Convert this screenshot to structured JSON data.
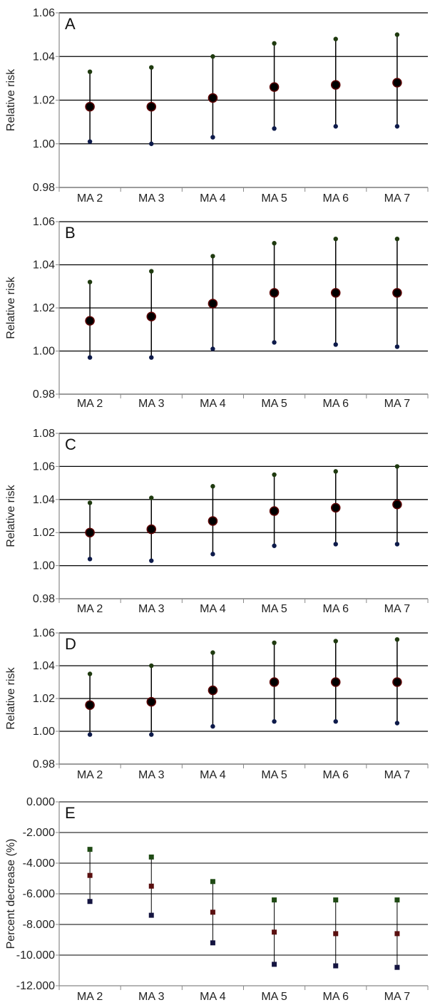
{
  "chart_data": [
    {
      "type": "scatter",
      "panel_label": "A",
      "ylabel": "Relative risk",
      "categories": [
        "MA 2",
        "MA 3",
        "MA 4",
        "MA 5",
        "MA 6",
        "MA 7"
      ],
      "yticks": [
        "0.98",
        "1.00",
        "1.02",
        "1.04",
        "1.06"
      ],
      "ylim": [
        0.98,
        1.06
      ],
      "grid": true,
      "estimate": [
        1.017,
        1.017,
        1.021,
        1.026,
        1.027,
        1.028
      ],
      "lower": [
        1.001,
        1.0,
        1.003,
        1.007,
        1.008,
        1.008
      ],
      "upper": [
        1.033,
        1.035,
        1.04,
        1.046,
        1.048,
        1.05
      ]
    },
    {
      "type": "scatter",
      "panel_label": "B",
      "ylabel": "Relative risk",
      "categories": [
        "MA 2",
        "MA 3",
        "MA 4",
        "MA 5",
        "MA 6",
        "MA 7"
      ],
      "yticks": [
        "0.98",
        "1.00",
        "1.02",
        "1.04",
        "1.06"
      ],
      "ylim": [
        0.98,
        1.06
      ],
      "grid": true,
      "estimate": [
        1.014,
        1.016,
        1.022,
        1.027,
        1.027,
        1.027
      ],
      "lower": [
        0.997,
        0.997,
        1.001,
        1.004,
        1.003,
        1.002
      ],
      "upper": [
        1.032,
        1.037,
        1.044,
        1.05,
        1.052,
        1.052
      ]
    },
    {
      "type": "scatter",
      "panel_label": "C",
      "ylabel": "Relative risk",
      "categories": [
        "MA 2",
        "MA 3",
        "MA 4",
        "MA 5",
        "MA 6",
        "MA 7"
      ],
      "yticks": [
        "0.98",
        "1.00",
        "1.02",
        "1.04",
        "1.06",
        "1.08"
      ],
      "ylim": [
        0.98,
        1.08
      ],
      "grid": true,
      "estimate": [
        1.02,
        1.022,
        1.027,
        1.033,
        1.035,
        1.037
      ],
      "lower": [
        1.004,
        1.003,
        1.007,
        1.012,
        1.013,
        1.013
      ],
      "upper": [
        1.038,
        1.041,
        1.048,
        1.055,
        1.057,
        1.06
      ]
    },
    {
      "type": "scatter",
      "panel_label": "D",
      "ylabel": "Relative risk",
      "categories": [
        "MA 2",
        "MA 3",
        "MA 4",
        "MA 5",
        "MA 6",
        "MA 7"
      ],
      "yticks": [
        "0.98",
        "1.00",
        "1.02",
        "1.04",
        "1.06"
      ],
      "ylim": [
        0.98,
        1.06
      ],
      "grid": true,
      "estimate": [
        1.016,
        1.018,
        1.025,
        1.03,
        1.03,
        1.03
      ],
      "lower": [
        0.998,
        0.998,
        1.003,
        1.006,
        1.006,
        1.005
      ],
      "upper": [
        1.035,
        1.04,
        1.048,
        1.054,
        1.055,
        1.056
      ]
    },
    {
      "type": "scatter",
      "panel_label": "E",
      "ylabel": "Percent decrease (%)",
      "categories": [
        "MA 2",
        "MA 3",
        "MA 4",
        "MA 5",
        "MA 6",
        "MA 7"
      ],
      "yticks": [
        "-12.000",
        "-10.000",
        "-8.000",
        "-6.000",
        "-4.000",
        "-2.000",
        "0.000"
      ],
      "ylim": [
        -12,
        0
      ],
      "grid": true,
      "estimate": [
        -4.8,
        -5.5,
        -7.2,
        -8.5,
        -8.6,
        -8.6
      ],
      "lower": [
        -6.5,
        -7.4,
        -9.2,
        -10.6,
        -10.7,
        -10.8
      ],
      "upper": [
        -3.1,
        -3.6,
        -5.2,
        -6.4,
        -6.4,
        -6.4
      ]
    }
  ],
  "colors": {
    "gridline": "#000000",
    "axis": "#888888",
    "errorbar": "#000000",
    "estimate_fill": "#000000",
    "estimate_stroke": "#5a0000",
    "upper_marker": "#1f3a0f",
    "lower_marker": "#0d1a4a",
    "e_estimate": "#5a0f0f",
    "e_upper": "#1f4a14",
    "e_lower": "#141440"
  }
}
